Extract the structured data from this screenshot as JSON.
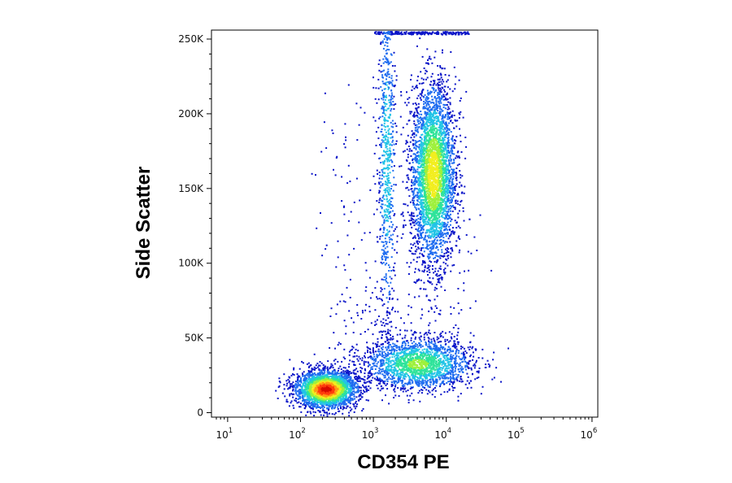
{
  "chart_data": {
    "type": "scatter",
    "style": "flow-cytometry-density-dot-plot",
    "title": "",
    "xlabel": "CD354 PE",
    "ylabel": "Side Scatter",
    "x_scale": "log",
    "y_scale": "linear",
    "xlim": [
      6,
      1200000
    ],
    "ylim": [
      -3000,
      256000
    ],
    "x_ticks": [
      {
        "value": 10,
        "base": "10",
        "exp": "1"
      },
      {
        "value": 100,
        "base": "10",
        "exp": "2"
      },
      {
        "value": 1000,
        "base": "10",
        "exp": "3"
      },
      {
        "value": 10000,
        "base": "10",
        "exp": "4"
      },
      {
        "value": 100000,
        "base": "10",
        "exp": "5"
      },
      {
        "value": 1000000,
        "base": "10",
        "exp": "6"
      }
    ],
    "y_ticks": [
      {
        "value": 0,
        "label": "0"
      },
      {
        "value": 50000,
        "label": "50K"
      },
      {
        "value": 100000,
        "label": "100K"
      },
      {
        "value": 150000,
        "label": "150K"
      },
      {
        "value": 200000,
        "label": "200K"
      },
      {
        "value": 250000,
        "label": "250K"
      }
    ],
    "grid": false,
    "legend": "none",
    "density_colormap": [
      "#0a14c8",
      "#1e6cf0",
      "#22c4e6",
      "#2ee39a",
      "#9ef03c",
      "#f2ee1e",
      "#ff9a14",
      "#ff3c0c",
      "#d80a00"
    ],
    "populations": [
      {
        "name": "",
        "x_center": 220,
        "y_center": 16000,
        "x_log_spread": 0.17,
        "y_spread": 5000,
        "peak_density": 1.0,
        "points": 2600
      },
      {
        "name": "",
        "x_center": 6500,
        "y_center": 160000,
        "x_log_spread": 0.12,
        "y_spread": 24000,
        "peak_density": 0.6,
        "points": 3400
      },
      {
        "name": "",
        "x_center": 1500,
        "y_center": 170000,
        "x_log_spread": 0.05,
        "y_spread": 50000,
        "peak_density": 0.22,
        "points": 700
      },
      {
        "name": "",
        "x_center": 4000,
        "y_center": 33000,
        "x_log_spread": 0.3,
        "y_spread": 7000,
        "peak_density": 0.4,
        "points": 1800
      }
    ]
  }
}
